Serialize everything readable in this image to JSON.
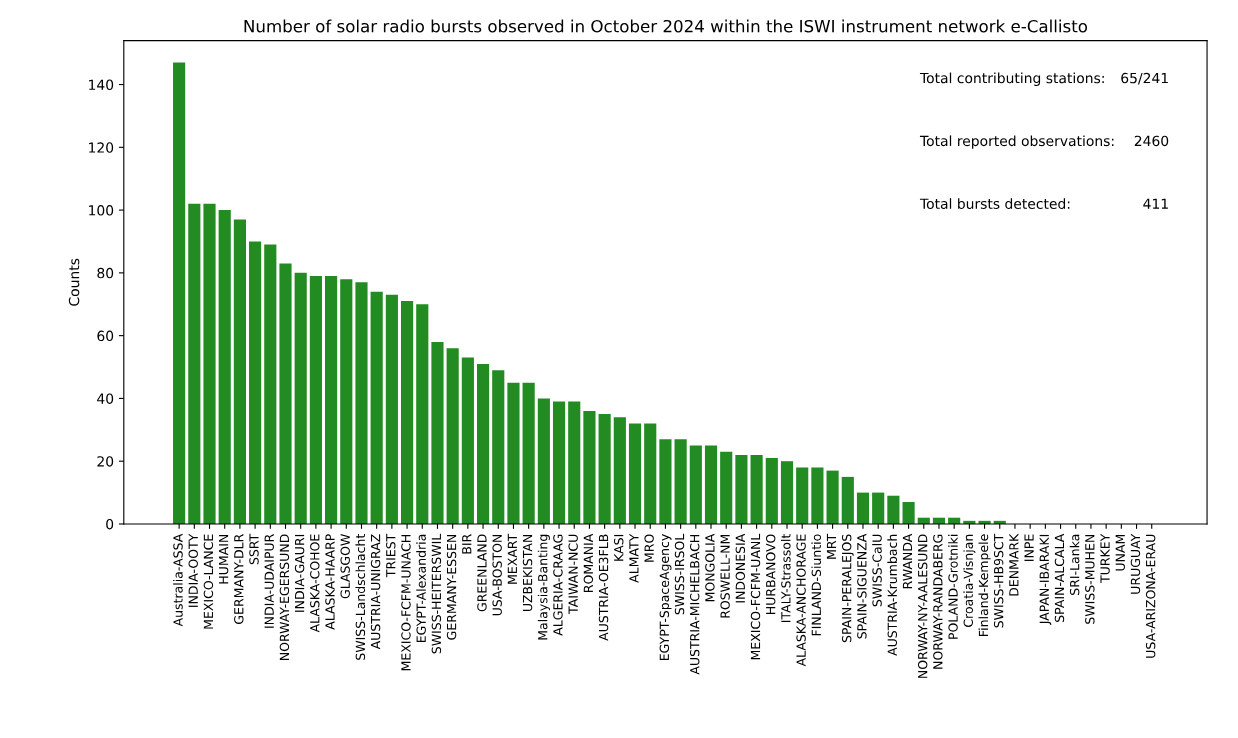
{
  "chart_data": {
    "type": "bar",
    "title": "Number of solar radio bursts observed in October 2024 within the ISWI instrument network e-Callisto",
    "ylabel": "Counts",
    "categories": [
      "Australia-ASSA",
      "INDIA-OOTY",
      "MEXICO-LANCE",
      "HUMAIN",
      "GERMANY-DLR",
      "SSRT",
      "INDIA-UDAIPUR",
      "NORWAY-EGERSUND",
      "INDIA-GAURI",
      "ALASKA-COHOE",
      "ALASKA-HAARP",
      "GLASGOW",
      "SWISS-Landschlacht",
      "AUSTRIA-UNIGRAZ",
      "TRIEST",
      "MEXICO-FCFM-UNACH",
      "EGYPT-Alexandria",
      "SWISS-HEITERSWIL",
      "GERMANY-ESSEN",
      "BIR",
      "GREENLAND",
      "USA-BOSTON",
      "MEXART",
      "UZBEKISTAN",
      "Malaysia-Banting",
      "ALGERIA-CRAAG",
      "TAIWAN-NCU",
      "ROMANIA",
      "AUSTRIA-OE3FLB",
      "KASI",
      "ALMATY",
      "MRO",
      "EGYPT-SpaceAgency",
      "SWISS-IRSOL",
      "AUSTRIA-MICHELBACH",
      "MONGOLIA",
      "ROSWELL-NM",
      "INDONESIA",
      "MEXICO-FCFM-UANL",
      "HURBANOVO",
      "ITALY-Strassolt",
      "ALASKA-ANCHORAGE",
      "FINLAND-Siuntio",
      "MRT",
      "SPAIN-PERALEJOS",
      "SPAIN-SIGUENZA",
      "SWISS-CalU",
      "AUSTRIA-Krumbach",
      "RWANDA",
      "NORWAY-NY-AALESUND",
      "NORWAY-RANDABERG",
      "POLAND-Grotniki",
      "Croatia-Visnjan",
      "Finland-Kempele",
      "SWISS-HB9SCT",
      "DENMARK",
      "INPE",
      "JAPAN-IBARAKI",
      "SPAIN-ALCALA",
      "SRI-Lanka",
      "SWISS-MUHEN",
      "TURKEY",
      "UNAM",
      "URUGUAY",
      "USA-ARIZONA-ERAU"
    ],
    "values": [
      147,
      102,
      102,
      100,
      97,
      90,
      89,
      83,
      80,
      79,
      79,
      78,
      77,
      74,
      73,
      71,
      70,
      58,
      56,
      53,
      51,
      49,
      45,
      45,
      40,
      39,
      39,
      36,
      35,
      34,
      32,
      32,
      27,
      27,
      25,
      25,
      23,
      22,
      22,
      21,
      20,
      18,
      18,
      17,
      15,
      10,
      10,
      9,
      7,
      2,
      2,
      2,
      1,
      1,
      1,
      0,
      0,
      0,
      0,
      0,
      0,
      0,
      0,
      0,
      0
    ],
    "color": "#228b22",
    "ylim": [
      0,
      154
    ],
    "yticks": [
      0,
      20,
      40,
      60,
      80,
      100,
      120,
      140
    ],
    "grid": false,
    "annotations": [
      "Total contributing stations:",
      "65/241",
      "Total reported observations:",
      "2460",
      "Total bursts detected:",
      "411"
    ]
  }
}
